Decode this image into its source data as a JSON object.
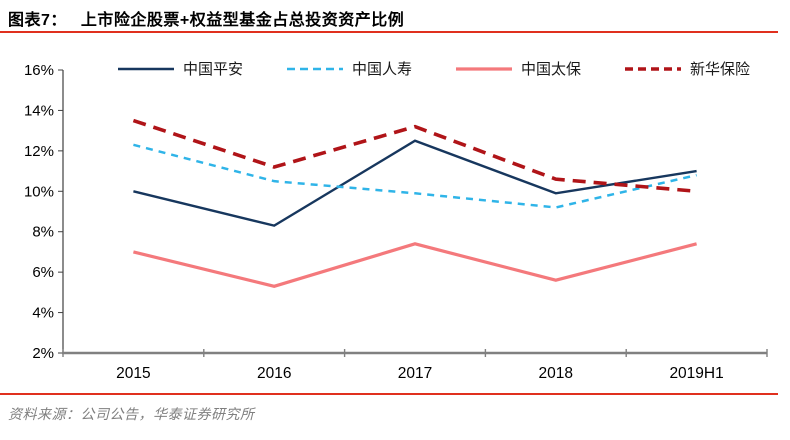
{
  "header": {
    "tag": "图表7：",
    "title": "上市险企股票+权益型基金占总投资资产比例"
  },
  "footer": {
    "source": "资料来源：公司公告，华泰证券研究所"
  },
  "colors": {
    "rule_red": "#e0301e",
    "x_axis": "#808080",
    "y_axis": "#404040",
    "axis_label": "#000000",
    "source_text": "#7f7f7f"
  },
  "chart_data": {
    "type": "line",
    "title": "上市险企股票+权益型基金占总投资资产比例",
    "categories": [
      "2015",
      "2016",
      "2017",
      "2018",
      "2019H1"
    ],
    "unit": "%",
    "ylim": [
      2,
      16
    ],
    "yticks": [
      2,
      4,
      6,
      8,
      10,
      12,
      14,
      16
    ],
    "grid": false,
    "legend_position": "top",
    "series": [
      {
        "name": "中国平安",
        "color": "#17375e",
        "line": "solid",
        "dash": "",
        "width": 2.4,
        "values": [
          10.0,
          8.3,
          12.5,
          9.9,
          11.0
        ]
      },
      {
        "name": "中国人寿",
        "color": "#2fb4e8",
        "line": "dashed",
        "dash": "7 6",
        "width": 2.5,
        "values": [
          12.3,
          10.5,
          9.9,
          9.2,
          10.8
        ]
      },
      {
        "name": "中国太保",
        "color": "#f4797c",
        "line": "solid",
        "dash": "",
        "width": 3.2,
        "values": [
          7.0,
          5.3,
          7.4,
          5.6,
          7.4
        ]
      },
      {
        "name": "新华保险",
        "color": "#b01418",
        "line": "dashed",
        "dash": "13 8",
        "width": 3.6,
        "values": [
          13.5,
          11.2,
          13.2,
          10.6,
          10.0
        ]
      }
    ]
  }
}
